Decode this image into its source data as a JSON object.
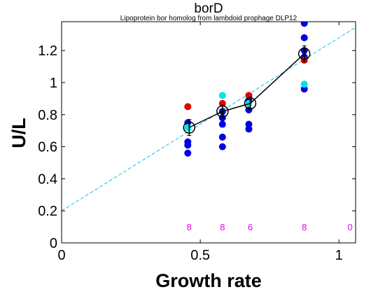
{
  "chart_data": {
    "type": "scatter",
    "title": "borD",
    "subtitle": "Lipoprotein bor homolog from lambdoid prophage DLP12",
    "xlabel": "Growth rate",
    "ylabel": "U/L",
    "xlim": [
      0,
      1.06
    ],
    "ylim": [
      0,
      1.38
    ],
    "xticks": [
      0,
      0.5,
      1
    ],
    "xtick_labels": [
      "0",
      "0.5",
      "1"
    ],
    "yticks": [
      0,
      0.2,
      0.4,
      0.6,
      0.8,
      1.0,
      1.2
    ],
    "ytick_labels": [
      "0",
      "0.2",
      "0.4",
      "0.6",
      "0.8",
      "1",
      "1.2"
    ],
    "grid": false,
    "colors": {
      "blue": "#0000e6",
      "red": "#e60000",
      "cyan": "#00e6e6",
      "fit_line": "#00c8e6",
      "mean_line": "#000000",
      "count": "#e600e6"
    },
    "series": [
      {
        "name": "blue replicates",
        "color": "blue",
        "points": [
          [
            0.455,
            0.56
          ],
          [
            0.455,
            0.61
          ],
          [
            0.455,
            0.63
          ],
          [
            0.455,
            0.75
          ],
          [
            0.58,
            0.6
          ],
          [
            0.58,
            0.66
          ],
          [
            0.58,
            0.74
          ],
          [
            0.58,
            0.78
          ],
          [
            0.58,
            0.82
          ],
          [
            0.675,
            0.71
          ],
          [
            0.675,
            0.74
          ],
          [
            0.675,
            0.83
          ],
          [
            0.675,
            0.89
          ],
          [
            0.875,
            0.96
          ],
          [
            0.875,
            1.16
          ],
          [
            0.875,
            1.2
          ],
          [
            0.875,
            1.28
          ],
          [
            0.875,
            1.37
          ]
        ]
      },
      {
        "name": "red replicates",
        "color": "red",
        "points": [
          [
            0.455,
            0.85
          ],
          [
            0.58,
            0.87
          ],
          [
            0.675,
            0.92
          ],
          [
            0.875,
            1.14
          ]
        ]
      },
      {
        "name": "cyan replicates",
        "color": "cyan",
        "points": [
          [
            0.455,
            0.72
          ],
          [
            0.58,
            0.92
          ],
          [
            0.675,
            0.87
          ],
          [
            0.875,
            0.99
          ]
        ]
      }
    ],
    "means": {
      "x": [
        0.46,
        0.58,
        0.68,
        0.875
      ],
      "y": [
        0.72,
        0.82,
        0.87,
        1.18
      ],
      "err": [
        0.05,
        0.04,
        0.04,
        0.05
      ]
    },
    "fit_line": {
      "intercept": 0.2,
      "slope": 1.08
    },
    "counts": [
      {
        "x": 0.46,
        "label": "8"
      },
      {
        "x": 0.58,
        "label": "8"
      },
      {
        "x": 0.68,
        "label": "6"
      },
      {
        "x": 0.875,
        "label": "8"
      },
      {
        "x": 1.04,
        "label": "0"
      }
    ],
    "count_y": 0.1
  }
}
